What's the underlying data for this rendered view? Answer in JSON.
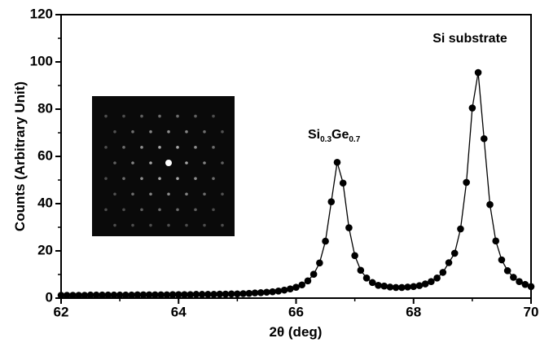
{
  "chart_data": {
    "type": "scatter-line",
    "x_label": "2θ  (deg)",
    "y_label": "Counts (Arbitrary Unit)",
    "xlim": [
      62,
      70
    ],
    "xticks": [
      62,
      64,
      66,
      68,
      70
    ],
    "ylim": [
      0,
      120
    ],
    "yticks": [
      0,
      20,
      40,
      60,
      80,
      100,
      120
    ],
    "color": "#000000",
    "x": [
      62,
      62.1,
      62.2,
      62.3,
      62.4,
      62.5,
      62.6,
      62.7,
      62.8,
      62.9,
      63,
      63.1,
      63.2,
      63.3,
      63.4,
      63.5,
      63.6,
      63.7,
      63.8,
      63.9,
      64,
      64.1,
      64.2,
      64.3,
      64.4,
      64.5,
      64.6,
      64.7,
      64.8,
      64.9,
      65,
      65.1,
      65.2,
      65.3,
      65.4,
      65.5,
      65.6,
      65.7,
      65.8,
      65.9,
      66,
      66.1,
      66.2,
      66.3,
      66.4,
      66.5,
      66.6,
      66.7,
      66.8,
      66.9,
      67,
      67.1,
      67.2,
      67.3,
      67.4,
      67.5,
      67.6,
      67.7,
      67.8,
      67.9,
      68,
      68.1,
      68.2,
      68.3,
      68.4,
      68.5,
      68.6,
      68.7,
      68.8,
      68.9,
      69,
      69.1,
      69.2,
      69.3,
      69.4,
      69.5,
      69.6,
      69.7,
      69.8,
      69.9,
      70
    ],
    "values": [
      1.2,
      1.2,
      1.2,
      1.2,
      1.2,
      1.3,
      1.3,
      1.3,
      1.3,
      1.3,
      1.3,
      1.3,
      1.3,
      1.4,
      1.4,
      1.4,
      1.4,
      1.4,
      1.4,
      1.5,
      1.5,
      1.5,
      1.5,
      1.6,
      1.6,
      1.6,
      1.6,
      1.7,
      1.7,
      1.8,
      1.8,
      1.9,
      2.0,
      2.2,
      2.3,
      2.5,
      2.7,
      3.0,
      3.4,
      3.9,
      4.6,
      5.6,
      7.3,
      10.1,
      14.9,
      24.1,
      40.8,
      57.5,
      48.7,
      29.8,
      18.0,
      11.8,
      8.5,
      6.6,
      5.4,
      5.1,
      4.7,
      4.5,
      4.5,
      4.7,
      4.9,
      5.3,
      6.0,
      7.0,
      8.5,
      10.9,
      15.0,
      19.0,
      29.3,
      49.0,
      80.5,
      95.5,
      67.5,
      39.6,
      24.2,
      16.2,
      11.6,
      8.8,
      7.0,
      5.8,
      4.9
    ],
    "annotations": [
      {
        "label_parts": [
          "Si",
          "0.3",
          "Ge",
          "0.7"
        ]
      },
      {
        "label": "Si substrate"
      }
    ]
  }
}
